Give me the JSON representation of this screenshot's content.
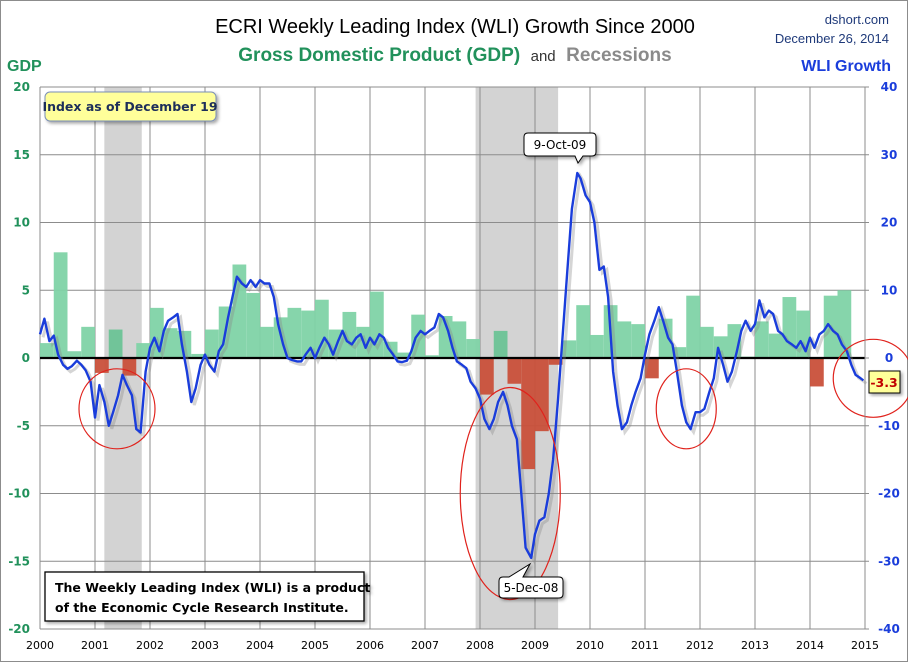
{
  "chart_data": {
    "type": "bar+line",
    "title": "ECRI Weekly Leading Index (WLI) Growth Since 2000",
    "subtitle": {
      "gdp": "Gross Domestic Product (GDP)",
      "and": "and",
      "recessions": "Recessions"
    },
    "source": "dshort.com",
    "date": "December 26, 2014",
    "left_axis": {
      "label": "GDP",
      "range": [
        -20,
        20
      ],
      "ticks": [
        20,
        15,
        10,
        5,
        0,
        -5,
        -10,
        -15,
        -20
      ]
    },
    "right_axis": {
      "label": "WLI Growth",
      "range": [
        -40,
        40
      ],
      "ticks": [
        40,
        30,
        20,
        10,
        0,
        -10,
        -20,
        -30,
        -40
      ]
    },
    "x_axis": {
      "range": [
        2000,
        2015
      ],
      "ticks": [
        "2000",
        "2001",
        "2002",
        "2003",
        "2004",
        "2005",
        "2006",
        "2007",
        "2008",
        "2009",
        "2010",
        "2011",
        "2012",
        "2013",
        "2014",
        "2015"
      ]
    },
    "grid": true,
    "recessions": [
      {
        "start": 2001.17,
        "end": 2001.85
      },
      {
        "start": 2007.92,
        "end": 2009.42
      }
    ],
    "gdp_series": {
      "name": "GDP (quarterly, annualized %)",
      "quarters": [
        2000.0,
        2000.25,
        2000.5,
        2000.75,
        2001.0,
        2001.25,
        2001.5,
        2001.75,
        2002.0,
        2002.25,
        2002.5,
        2002.75,
        2003.0,
        2003.25,
        2003.5,
        2003.75,
        2004.0,
        2004.25,
        2004.5,
        2004.75,
        2005.0,
        2005.25,
        2005.5,
        2005.75,
        2006.0,
        2006.25,
        2006.5,
        2006.75,
        2007.0,
        2007.25,
        2007.5,
        2007.75,
        2008.0,
        2008.25,
        2008.5,
        2008.75,
        2009.0,
        2009.25,
        2009.5,
        2009.75,
        2010.0,
        2010.25,
        2010.5,
        2010.75,
        2011.0,
        2011.25,
        2011.5,
        2011.75,
        2012.0,
        2012.25,
        2012.5,
        2012.75,
        2013.0,
        2013.25,
        2013.5,
        2013.75,
        2014.0,
        2014.25,
        2014.5,
        2014.75
      ],
      "values": [
        1.1,
        7.8,
        0.5,
        2.3,
        -1.1,
        2.1,
        -1.3,
        1.1,
        3.7,
        2.2,
        2.0,
        0.3,
        2.1,
        3.8,
        6.9,
        4.8,
        2.3,
        3.0,
        3.7,
        3.5,
        4.3,
        2.1,
        3.4,
        2.3,
        4.9,
        1.2,
        0.4,
        3.2,
        0.2,
        3.1,
        2.7,
        1.4,
        -2.7,
        2.0,
        -1.9,
        -8.2,
        -5.4,
        -0.5,
        1.3,
        3.9,
        1.7,
        3.9,
        2.7,
        2.5,
        -1.5,
        2.9,
        0.8,
        4.6,
        2.3,
        1.6,
        2.5,
        0.1,
        2.7,
        1.8,
        4.5,
        3.5,
        -2.1,
        4.6,
        5.0,
        null
      ],
      "positive_color": "#7fd3a7",
      "negative_color": "#c9503a"
    },
    "wli_series": {
      "name": "WLI Growth (%)",
      "color": "#1a3ddb",
      "points": [
        [
          2000.0,
          3.5
        ],
        [
          2000.08,
          5.8
        ],
        [
          2000.17,
          2.5
        ],
        [
          2000.25,
          3.3
        ],
        [
          2000.33,
          0.5
        ],
        [
          2000.42,
          -1.0
        ],
        [
          2000.5,
          -1.6
        ],
        [
          2000.58,
          -1.2
        ],
        [
          2000.67,
          -0.4
        ],
        [
          2000.75,
          -1.0
        ],
        [
          2000.83,
          -1.8
        ],
        [
          2000.92,
          -3.5
        ],
        [
          2001.0,
          -8.8
        ],
        [
          2001.08,
          -4.0
        ],
        [
          2001.17,
          -6.5
        ],
        [
          2001.25,
          -10.0
        ],
        [
          2001.33,
          -8.0
        ],
        [
          2001.42,
          -5.5
        ],
        [
          2001.5,
          -2.5
        ],
        [
          2001.58,
          -4.0
        ],
        [
          2001.67,
          -5.5
        ],
        [
          2001.75,
          -10.5
        ],
        [
          2001.83,
          -11.0
        ],
        [
          2001.92,
          -2.0
        ],
        [
          2002.0,
          1.5
        ],
        [
          2002.08,
          3.0
        ],
        [
          2002.17,
          1.0
        ],
        [
          2002.25,
          4.0
        ],
        [
          2002.33,
          5.5
        ],
        [
          2002.42,
          6.0
        ],
        [
          2002.5,
          6.5
        ],
        [
          2002.58,
          2.0
        ],
        [
          2002.67,
          -2.0
        ],
        [
          2002.75,
          -6.5
        ],
        [
          2002.83,
          -4.5
        ],
        [
          2002.92,
          -1.0
        ],
        [
          2003.0,
          0.5
        ],
        [
          2003.08,
          -1.0
        ],
        [
          2003.17,
          -2.0
        ],
        [
          2003.25,
          1.0
        ],
        [
          2003.33,
          2.0
        ],
        [
          2003.42,
          6.0
        ],
        [
          2003.5,
          9.0
        ],
        [
          2003.58,
          12.0
        ],
        [
          2003.67,
          11.0
        ],
        [
          2003.75,
          10.5
        ],
        [
          2003.83,
          11.5
        ],
        [
          2003.92,
          10.5
        ],
        [
          2004.0,
          11.5
        ],
        [
          2004.08,
          11.0
        ],
        [
          2004.17,
          11.0
        ],
        [
          2004.25,
          9.0
        ],
        [
          2004.33,
          5.0
        ],
        [
          2004.42,
          2.0
        ],
        [
          2004.5,
          0.0
        ],
        [
          2004.58,
          -0.3
        ],
        [
          2004.67,
          -0.5
        ],
        [
          2004.75,
          -0.5
        ],
        [
          2004.83,
          0.5
        ],
        [
          2004.92,
          1.5
        ],
        [
          2005.0,
          0.0
        ],
        [
          2005.08,
          1.5
        ],
        [
          2005.17,
          3.0
        ],
        [
          2005.25,
          2.0
        ],
        [
          2005.33,
          0.5
        ],
        [
          2005.42,
          2.5
        ],
        [
          2005.5,
          4.0
        ],
        [
          2005.58,
          2.5
        ],
        [
          2005.67,
          2.0
        ],
        [
          2005.75,
          3.0
        ],
        [
          2005.83,
          3.5
        ],
        [
          2005.92,
          1.5
        ],
        [
          2006.0,
          3.0
        ],
        [
          2006.08,
          2.0
        ],
        [
          2006.17,
          3.5
        ],
        [
          2006.25,
          3.0
        ],
        [
          2006.33,
          1.5
        ],
        [
          2006.42,
          0.5
        ],
        [
          2006.5,
          -0.5
        ],
        [
          2006.58,
          -0.6
        ],
        [
          2006.67,
          -0.4
        ],
        [
          2006.75,
          1.0
        ],
        [
          2006.83,
          3.0
        ],
        [
          2006.92,
          4.0
        ],
        [
          2007.0,
          3.5
        ],
        [
          2007.08,
          4.0
        ],
        [
          2007.17,
          4.5
        ],
        [
          2007.25,
          6.5
        ],
        [
          2007.33,
          6.0
        ],
        [
          2007.42,
          4.0
        ],
        [
          2007.5,
          1.5
        ],
        [
          2007.58,
          -0.5
        ],
        [
          2007.67,
          -1.0
        ],
        [
          2007.75,
          -1.5
        ],
        [
          2007.83,
          -3.5
        ],
        [
          2007.92,
          -4.5
        ],
        [
          2008.0,
          -6.0
        ],
        [
          2008.08,
          -9.0
        ],
        [
          2008.17,
          -10.5
        ],
        [
          2008.25,
          -9.0
        ],
        [
          2008.33,
          -6.5
        ],
        [
          2008.42,
          -5.0
        ],
        [
          2008.5,
          -7.0
        ],
        [
          2008.58,
          -10.0
        ],
        [
          2008.67,
          -12.0
        ],
        [
          2008.75,
          -20.0
        ],
        [
          2008.83,
          -28.0
        ],
        [
          2008.93,
          -29.5
        ],
        [
          2009.0,
          -26.0
        ],
        [
          2009.08,
          -24.0
        ],
        [
          2009.17,
          -23.5
        ],
        [
          2009.25,
          -20.0
        ],
        [
          2009.33,
          -15.0
        ],
        [
          2009.42,
          -6.0
        ],
        [
          2009.5,
          3.0
        ],
        [
          2009.58,
          12.0
        ],
        [
          2009.67,
          22.0
        ],
        [
          2009.77,
          27.3
        ],
        [
          2009.83,
          26.5
        ],
        [
          2009.92,
          24.0
        ],
        [
          2010.0,
          23.0
        ],
        [
          2010.08,
          20.0
        ],
        [
          2010.17,
          13.0
        ],
        [
          2010.25,
          13.5
        ],
        [
          2010.33,
          9.0
        ],
        [
          2010.42,
          -2.0
        ],
        [
          2010.5,
          -7.0
        ],
        [
          2010.58,
          -10.5
        ],
        [
          2010.67,
          -9.5
        ],
        [
          2010.75,
          -7.0
        ],
        [
          2010.83,
          -5.0
        ],
        [
          2010.92,
          -3.0
        ],
        [
          2011.0,
          0.5
        ],
        [
          2011.08,
          3.5
        ],
        [
          2011.17,
          5.5
        ],
        [
          2011.25,
          7.5
        ],
        [
          2011.33,
          5.5
        ],
        [
          2011.42,
          3.0
        ],
        [
          2011.5,
          2.0
        ],
        [
          2011.58,
          -2.0
        ],
        [
          2011.67,
          -7.0
        ],
        [
          2011.75,
          -9.5
        ],
        [
          2011.83,
          -10.5
        ],
        [
          2011.92,
          -8.0
        ],
        [
          2012.0,
          -8.0
        ],
        [
          2012.08,
          -7.5
        ],
        [
          2012.17,
          -5.0
        ],
        [
          2012.25,
          -3.0
        ],
        [
          2012.33,
          1.5
        ],
        [
          2012.42,
          -1.0
        ],
        [
          2012.5,
          -3.5
        ],
        [
          2012.58,
          -2.0
        ],
        [
          2012.67,
          1.0
        ],
        [
          2012.75,
          4.0
        ],
        [
          2012.83,
          5.5
        ],
        [
          2012.92,
          4.0
        ],
        [
          2013.0,
          5.0
        ],
        [
          2013.08,
          8.5
        ],
        [
          2013.17,
          6.0
        ],
        [
          2013.25,
          7.0
        ],
        [
          2013.33,
          6.5
        ],
        [
          2013.42,
          4.0
        ],
        [
          2013.5,
          3.5
        ],
        [
          2013.58,
          2.5
        ],
        [
          2013.67,
          2.0
        ],
        [
          2013.75,
          1.5
        ],
        [
          2013.83,
          2.5
        ],
        [
          2013.92,
          1.0
        ],
        [
          2014.0,
          3.0
        ],
        [
          2014.08,
          1.5
        ],
        [
          2014.17,
          3.5
        ],
        [
          2014.25,
          4.0
        ],
        [
          2014.33,
          5.0
        ],
        [
          2014.42,
          4.0
        ],
        [
          2014.5,
          3.5
        ],
        [
          2014.58,
          2.0
        ],
        [
          2014.67,
          1.0
        ],
        [
          2014.75,
          -1.0
        ],
        [
          2014.83,
          -2.5
        ],
        [
          2014.92,
          -3.0
        ],
        [
          2014.97,
          -3.3
        ]
      ]
    },
    "annotations": {
      "index_date": "Index as of December 19",
      "peak_label": "9-Oct-09",
      "trough_label": "5-Dec-08",
      "last_value": "-3.3",
      "note_line1": "The Weekly Leading Index (WLI) is a product",
      "note_line2": "of the Economic Cycle Research Institute."
    },
    "circled_regions": [
      {
        "center_x": 2001.4,
        "center_wli": -7.5
      },
      {
        "center_x": 2008.55,
        "center_wli": -20.0
      },
      {
        "center_x": 2011.75,
        "center_wli": -7.5
      },
      {
        "center_x": 2015.15,
        "center_wli": -3.0
      }
    ]
  }
}
